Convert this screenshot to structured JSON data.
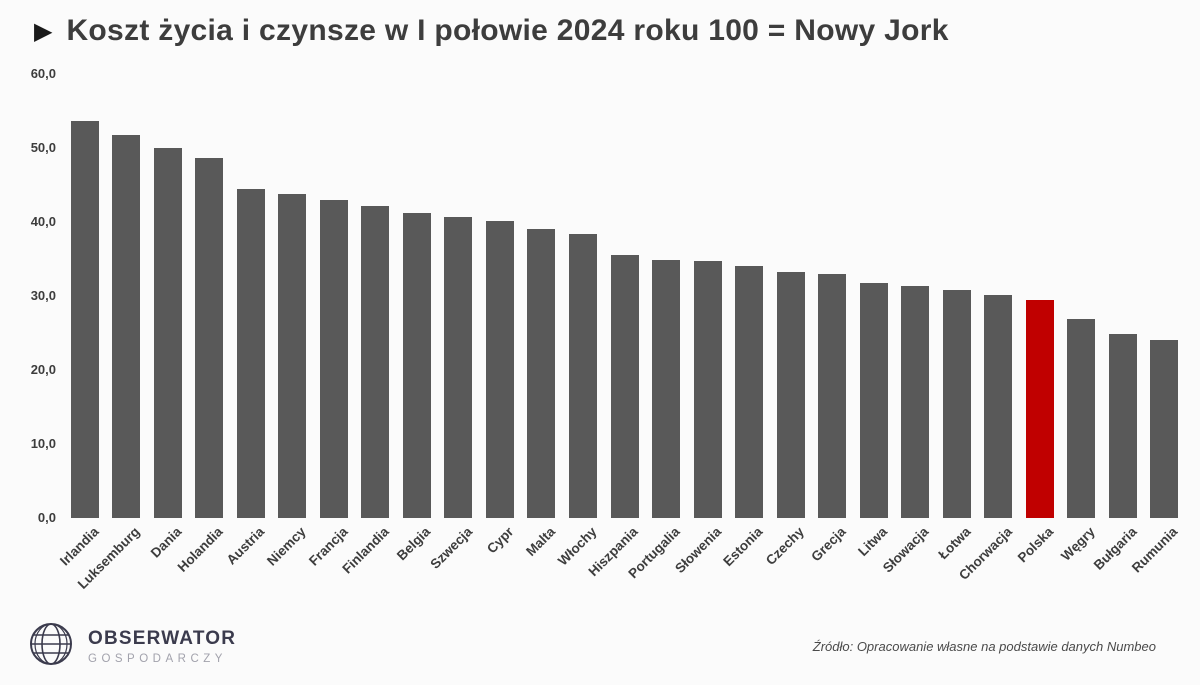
{
  "title_marker": "▶",
  "colors": {
    "bar": "#595959",
    "highlight": "#c00000",
    "title_text": "#3d3d3d",
    "axis_text": "#3d3d3d",
    "background": "#fbfbfb"
  },
  "chart_data": {
    "type": "bar",
    "title": "Koszt życia i czynsze w I połowie 2024 roku 100 = Nowy Jork",
    "categories": [
      "Irlandia",
      "Luksemburg",
      "Dania",
      "Holandia",
      "Austria",
      "Niemcy",
      "Francja",
      "Finlandia",
      "Belgia",
      "Szwecja",
      "Cypr",
      "Malta",
      "Włochy",
      "Hiszpania",
      "Portugalia",
      "Słowenia",
      "Estonia",
      "Czechy",
      "Grecja",
      "Litwa",
      "Słowacja",
      "Łotwa",
      "Chorwacja",
      "Polska",
      "Węgry",
      "Bułgaria",
      "Rumunia"
    ],
    "values": [
      53.6,
      51.8,
      50.0,
      48.7,
      44.4,
      43.8,
      43.0,
      42.2,
      41.2,
      40.7,
      40.2,
      39.0,
      38.4,
      35.5,
      34.8,
      34.7,
      34.0,
      33.2,
      33.0,
      31.7,
      31.3,
      30.8,
      30.2,
      29.5,
      26.9,
      24.8,
      24.0
    ],
    "highlight_category": "Polska",
    "xlabel": "",
    "ylabel": "",
    "ylim": [
      0,
      60
    ],
    "yticks": [
      "0,0",
      "10,0",
      "20,0",
      "30,0",
      "40,0",
      "50,0",
      "60,0"
    ],
    "grid": false,
    "legend": "none"
  },
  "footer": {
    "logo_line1": "OBSERWATOR",
    "logo_line2": "GOSPODARCZY",
    "source": "Źródło: Opracowanie własne na podstawie danych Numbeo"
  }
}
